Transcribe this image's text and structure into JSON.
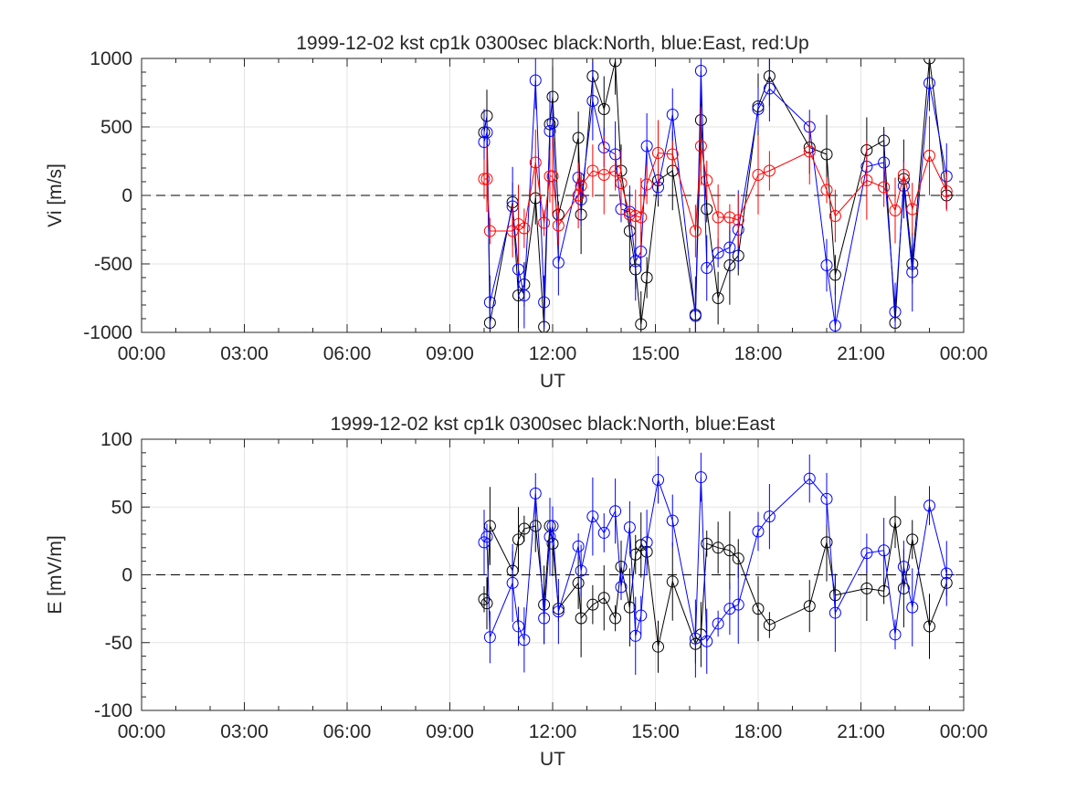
{
  "x_ticks": [
    "00:00",
    "03:00",
    "06:00",
    "09:00",
    "12:00",
    "15:00",
    "18:00",
    "21:00",
    "00:00"
  ],
  "chart_data": [
    {
      "type": "line",
      "title": "1999-12-02 kst cp1k 0300sec black:North, blue:East, red:Up",
      "xlabel": "UT",
      "ylabel": "Vi [m/s]",
      "xlim": [
        0,
        24
      ],
      "ylim": [
        -1000,
        1000
      ],
      "y_ticks": [
        -1000,
        -500,
        0,
        500,
        1000
      ],
      "grid": true,
      "zero_line": "dashed",
      "series": [
        {
          "name": "North",
          "color": "#000000",
          "x": [
            10.0,
            10.08,
            10.17,
            10.83,
            11.0,
            11.17,
            11.5,
            11.75,
            11.92,
            12.0,
            12.17,
            12.75,
            12.83,
            13.17,
            13.5,
            13.83,
            14.0,
            14.25,
            14.42,
            14.58,
            14.75,
            15.08,
            15.5,
            16.17,
            16.33,
            16.5,
            16.83,
            17.17,
            17.42,
            18.0,
            18.33,
            19.5,
            20.0,
            20.25,
            21.17,
            21.67,
            22.0,
            22.25,
            22.5,
            23.0,
            23.5
          ],
          "y": [
            460,
            580,
            -930,
            -50,
            -730,
            -650,
            -20,
            -960,
            520,
            720,
            -140,
            420,
            -140,
            870,
            630,
            980,
            180,
            -260,
            -540,
            -940,
            -600,
            110,
            180,
            -870,
            550,
            -100,
            -750,
            -510,
            -440,
            650,
            870,
            350,
            300,
            -580,
            330,
            400,
            -930,
            120,
            -500,
            1000,
            0
          ]
        },
        {
          "name": "East",
          "color": "#0000ff",
          "x": [
            10.0,
            10.08,
            10.17,
            10.83,
            11.0,
            11.17,
            11.5,
            11.75,
            11.92,
            12.0,
            12.17,
            12.75,
            12.83,
            13.17,
            13.5,
            13.83,
            14.0,
            14.25,
            14.42,
            14.58,
            14.75,
            15.08,
            15.5,
            16.17,
            16.33,
            16.5,
            16.83,
            17.17,
            17.42,
            18.0,
            18.33,
            19.5,
            20.0,
            20.25,
            21.17,
            21.67,
            22.0,
            22.25,
            22.5,
            23.0,
            23.5
          ],
          "y": [
            390,
            460,
            -780,
            -80,
            -540,
            -730,
            840,
            -780,
            470,
            530,
            -490,
            130,
            -30,
            690,
            350,
            300,
            -100,
            -120,
            -480,
            -410,
            360,
            60,
            590,
            -880,
            910,
            -530,
            -420,
            -380,
            -250,
            630,
            780,
            500,
            -510,
            -950,
            210,
            240,
            -850,
            70,
            -560,
            820,
            140
          ]
        },
        {
          "name": "Up",
          "color": "#ff0000",
          "x": [
            10.0,
            10.08,
            10.17,
            10.83,
            11.0,
            11.17,
            11.5,
            11.75,
            11.92,
            12.0,
            12.17,
            12.75,
            12.83,
            13.17,
            13.5,
            13.83,
            14.0,
            14.25,
            14.42,
            14.58,
            14.75,
            15.08,
            15.5,
            16.17,
            16.33,
            16.5,
            16.83,
            17.17,
            17.42,
            18.0,
            18.33,
            19.5,
            20.0,
            20.25,
            21.17,
            21.67,
            22.0,
            22.25,
            22.5,
            23.0,
            23.5
          ],
          "y": [
            120,
            120,
            -260,
            -260,
            -210,
            -240,
            240,
            -200,
            140,
            140,
            -220,
            0,
            70,
            180,
            150,
            180,
            90,
            -140,
            -150,
            -160,
            80,
            310,
            300,
            -260,
            360,
            110,
            -160,
            -160,
            -180,
            150,
            180,
            320,
            40,
            -150,
            110,
            60,
            -110,
            150,
            -100,
            290,
            30
          ]
        }
      ]
    },
    {
      "type": "line",
      "title": "1999-12-02 kst cp1k 0300sec black:North, blue:East",
      "xlabel": "UT",
      "ylabel": "E [mV/m]",
      "xlim": [
        0,
        24
      ],
      "ylim": [
        -100,
        100
      ],
      "y_ticks": [
        -100,
        -50,
        0,
        50,
        100
      ],
      "grid": true,
      "zero_line": "dashed",
      "series": [
        {
          "name": "North",
          "color": "#000000",
          "x": [
            10.0,
            10.08,
            10.17,
            10.83,
            11.0,
            11.17,
            11.5,
            11.75,
            11.92,
            12.0,
            12.17,
            12.75,
            12.83,
            13.17,
            13.5,
            13.83,
            14.0,
            14.25,
            14.42,
            14.58,
            14.75,
            15.08,
            15.5,
            16.17,
            16.33,
            16.5,
            16.83,
            17.17,
            17.42,
            18.0,
            18.33,
            19.5,
            20.0,
            20.25,
            21.17,
            21.67,
            22.0,
            22.25,
            22.5,
            23.0,
            23.5
          ],
          "y": [
            -18,
            -21,
            36,
            3,
            26,
            34,
            36,
            -22,
            36,
            23,
            -25,
            -6,
            -32,
            -22,
            -17,
            -32,
            6,
            -24,
            15,
            22,
            17,
            -53,
            -5,
            -51,
            -44,
            23,
            20,
            18,
            12,
            -25,
            -37,
            -23,
            24,
            -15,
            -10,
            -12,
            39,
            -10,
            26,
            -38,
            -6
          ]
        },
        {
          "name": "East",
          "color": "#0000ff",
          "x": [
            10.0,
            10.08,
            10.17,
            10.83,
            11.0,
            11.17,
            11.5,
            11.75,
            11.92,
            12.0,
            12.17,
            12.75,
            12.83,
            13.17,
            13.5,
            13.83,
            14.0,
            14.25,
            14.42,
            14.58,
            14.75,
            15.08,
            15.5,
            16.17,
            16.33,
            16.5,
            16.83,
            17.17,
            17.42,
            18.0,
            18.33,
            19.5,
            20.0,
            20.25,
            21.17,
            21.67,
            22.0,
            22.25,
            22.5,
            23.0,
            23.5
          ],
          "y": [
            24,
            28,
            -46,
            -6,
            -38,
            -48,
            60,
            -32,
            28,
            36,
            -27,
            21,
            3,
            43,
            31,
            47,
            -9,
            35,
            -45,
            -30,
            24,
            70,
            40,
            -47,
            72,
            -49,
            -36,
            -25,
            -22,
            32,
            43,
            71,
            56,
            -28,
            16,
            18,
            -44,
            6,
            -24,
            51,
            1
          ]
        }
      ]
    }
  ]
}
